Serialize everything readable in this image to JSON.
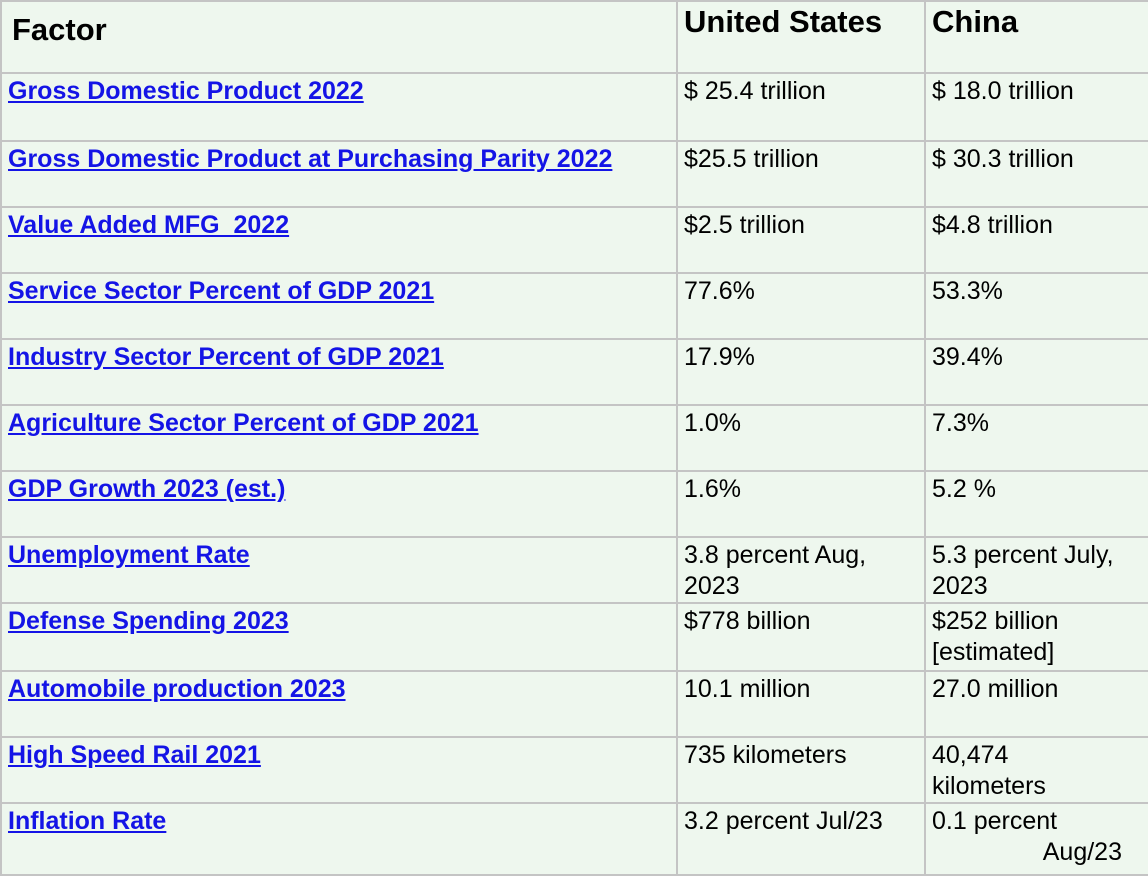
{
  "header": {
    "factor": "Factor",
    "united_states": "United States",
    "china": "China"
  },
  "rows": [
    {
      "factor": "Gross Domestic Product 2022",
      "us": "$ 25.4 trillion",
      "china": "$ 18.0 trillion"
    },
    {
      "factor": "Gross Domestic Product at Purchasing Parity 2022",
      "us": "$25.5 trillion",
      "china": "$ 30.3 trillion"
    },
    {
      "factor": "Value Added MFG  2022",
      "us": "$2.5 trillion",
      "china": "$4.8 trillion"
    },
    {
      "factor": "Service Sector Percent of GDP 2021",
      "us": "77.6%",
      "china": "53.3%"
    },
    {
      "factor": "Industry Sector Percent of GDP 2021",
      "us": "17.9%",
      "china": "39.4%"
    },
    {
      "factor": "Agriculture Sector Percent of GDP 2021",
      "us": "1.0%",
      "china": "7.3%"
    },
    {
      "factor": "GDP Growth 2023 (est.)",
      "us": "1.6%",
      "china": "5.2 %"
    },
    {
      "factor": "Unemployment Rate",
      "us_line1": "3.8 percent Aug,",
      "us_line2": "2023",
      "china_line1": "5.3 percent July,",
      "china_line2": "2023"
    },
    {
      "factor": "Defense Spending 2023",
      "us": "$778 billion",
      "china_line1": "$252 billion",
      "china_line2": "[estimated]"
    },
    {
      "factor": "Automobile production 2023",
      "us": "10.1 million",
      "china": "27.0 million"
    },
    {
      "factor": "High Speed Rail 2021",
      "us": "735 kilometers",
      "china_line1": "40,474",
      "china_line2": "kilometers"
    },
    {
      "factor": "Inflation Rate",
      "us": "3.2 percent Jul/23",
      "china_line1": "0.1 percent",
      "china_line2": "Aug/23"
    }
  ]
}
